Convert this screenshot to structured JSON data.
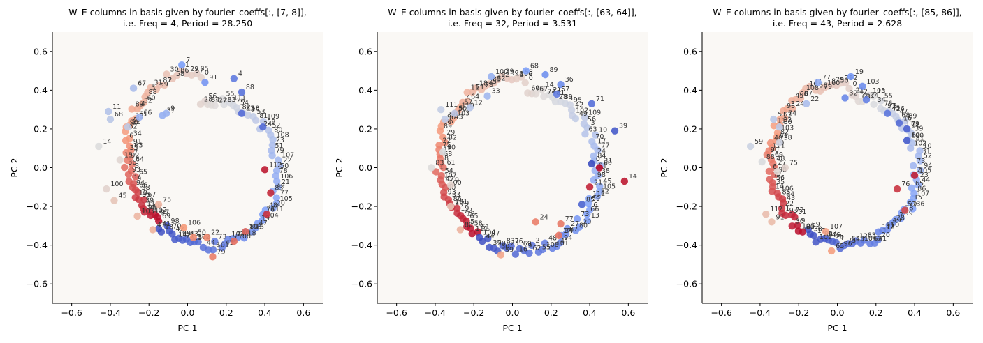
{
  "chart_data": [
    {
      "type": "scatter",
      "title_line1": "W_E columns in basis given by fourier_coeffs[:, [7, 8]],",
      "title_line2": "i.e. Freq = 4, Period = 28.250",
      "xlabel": "PC 1",
      "ylabel": "PC 2",
      "xlim": [
        -0.7,
        0.7
      ],
      "ylim": [
        -0.7,
        0.7
      ],
      "xticks": [
        "−0.6",
        "−0.4",
        "−0.2",
        "0.0",
        "0.2",
        "0.4",
        "0.6"
      ],
      "yticks": [
        "−0.6",
        "−0.4",
        "−0.2",
        "0.0",
        "0.2",
        "0.4",
        "0.6"
      ],
      "colormap": "coolwarm",
      "freq": 4,
      "period": 28.25,
      "radius_outer": 0.5,
      "radius_inner": 0.3,
      "points": 113,
      "labelled_points": [
        {
          "label": "7",
          "x": -0.03,
          "y": 0.53
        },
        {
          "label": "4",
          "x": 0.24,
          "y": 0.46
        },
        {
          "label": "91",
          "x": 0.09,
          "y": 0.44
        },
        {
          "label": "67",
          "x": -0.28,
          "y": 0.41
        },
        {
          "label": "88",
          "x": 0.28,
          "y": 0.39
        },
        {
          "label": "31",
          "x": 0.28,
          "y": 0.28
        },
        {
          "label": "59",
          "x": 0.39,
          "y": 0.21
        },
        {
          "label": "112",
          "x": 0.4,
          "y": -0.01
        },
        {
          "label": "83",
          "x": 0.43,
          "y": -0.13
        },
        {
          "label": "111",
          "x": 0.41,
          "y": -0.24
        },
        {
          "label": "80",
          "x": 0.3,
          "y": -0.33
        },
        {
          "label": "79",
          "x": 0.13,
          "y": -0.46
        },
        {
          "label": "108",
          "x": 0.24,
          "y": -0.38
        },
        {
          "label": "22",
          "x": 0.1,
          "y": -0.36
        },
        {
          "label": "50",
          "x": 0.03,
          "y": -0.36
        },
        {
          "label": "106",
          "x": -0.02,
          "y": -0.31
        },
        {
          "label": "47",
          "x": -0.18,
          "y": -0.32
        },
        {
          "label": "103",
          "x": -0.26,
          "y": -0.25
        },
        {
          "label": "75",
          "x": -0.15,
          "y": -0.19
        },
        {
          "label": "45",
          "x": -0.38,
          "y": -0.17
        },
        {
          "label": "100",
          "x": -0.42,
          "y": -0.11
        },
        {
          "label": "14",
          "x": -0.46,
          "y": 0.11
        },
        {
          "label": "68",
          "x": -0.4,
          "y": 0.25
        },
        {
          "label": "11",
          "x": -0.41,
          "y": 0.29
        },
        {
          "label": "12",
          "x": -0.31,
          "y": 0.21
        },
        {
          "label": "66",
          "x": -0.25,
          "y": 0.26
        },
        {
          "label": "37",
          "x": -0.13,
          "y": 0.27
        },
        {
          "label": "9",
          "x": -0.11,
          "y": 0.28
        },
        {
          "label": "15",
          "x": -0.35,
          "y": 0.04
        }
      ]
    },
    {
      "type": "scatter",
      "title_line1": "W_E columns in basis given by fourier_coeffs[:, [63, 64]],",
      "title_line2": "i.e. Freq = 32, Period = 3.531",
      "xlabel": "PC 1",
      "ylabel": "PC 2",
      "xlim": [
        -0.7,
        0.7
      ],
      "ylim": [
        -0.7,
        0.7
      ],
      "xticks": [
        "−0.6",
        "−0.4",
        "−0.2",
        "0.0",
        "0.2",
        "0.4",
        "0.6"
      ],
      "yticks": [
        "−0.6",
        "−0.4",
        "−0.2",
        "0.0",
        "0.2",
        "0.4",
        "0.6"
      ],
      "colormap": "coolwarm",
      "freq": 32,
      "period": 3.531,
      "radius_outer": 0.47,
      "radius_inner": 0.39,
      "points": 113,
      "labelled_points": [
        {
          "label": "68",
          "x": 0.07,
          "y": 0.5
        },
        {
          "label": "89",
          "x": 0.17,
          "y": 0.48
        },
        {
          "label": "100",
          "x": -0.11,
          "y": 0.47
        },
        {
          "label": "36",
          "x": 0.25,
          "y": 0.43
        },
        {
          "label": "57",
          "x": 0.23,
          "y": 0.38
        },
        {
          "label": "71",
          "x": 0.41,
          "y": 0.33
        },
        {
          "label": "39",
          "x": 0.53,
          "y": 0.19
        },
        {
          "label": "0",
          "x": 0.41,
          "y": 0.02
        },
        {
          "label": "60",
          "x": 0.45,
          "y": 0.0
        },
        {
          "label": "14",
          "x": 0.58,
          "y": -0.07
        },
        {
          "label": "85",
          "x": 0.36,
          "y": -0.19
        },
        {
          "label": "21",
          "x": 0.4,
          "y": -0.1
        },
        {
          "label": "24",
          "x": 0.12,
          "y": -0.28
        },
        {
          "label": "77",
          "x": 0.25,
          "y": -0.29
        },
        {
          "label": "17",
          "x": 0.24,
          "y": -0.35
        },
        {
          "label": "59",
          "x": -0.06,
          "y": -0.45
        },
        {
          "label": "80",
          "x": -0.27,
          "y": -0.32
        },
        {
          "label": "101",
          "x": -0.32,
          "y": -0.2
        },
        {
          "label": "83",
          "x": -0.42,
          "y": 0.0
        },
        {
          "label": "90",
          "x": -0.36,
          "y": 0.08
        },
        {
          "label": "58",
          "x": -0.35,
          "y": 0.25
        },
        {
          "label": "111",
          "x": -0.37,
          "y": 0.3
        },
        {
          "label": "5",
          "x": -0.3,
          "y": 0.28
        },
        {
          "label": "12",
          "x": -0.22,
          "y": 0.31
        },
        {
          "label": "33",
          "x": -0.13,
          "y": 0.37
        },
        {
          "label": "9",
          "x": -0.32,
          "y": -0.09
        }
      ]
    },
    {
      "type": "scatter",
      "title_line1": "W_E columns in basis given by fourier_coeffs[:, [85, 86]],",
      "title_line2": "i.e. Freq = 43, Period = 2.628",
      "xlabel": "PC 1",
      "ylabel": "PC 2",
      "xlim": [
        -0.7,
        0.7
      ],
      "ylim": [
        -0.7,
        0.7
      ],
      "xticks": [
        "−0.6",
        "−0.4",
        "−0.2",
        "0.0",
        "0.2",
        "0.4",
        "0.6"
      ],
      "yticks": [
        "−0.6",
        "−0.4",
        "−0.2",
        "0.0",
        "0.2",
        "0.4",
        "0.6"
      ],
      "colormap": "coolwarm",
      "freq": 43,
      "period": 2.628,
      "radius_outer": 0.44,
      "radius_inner": 0.36,
      "points": 113,
      "labelled_points": [
        {
          "label": "19",
          "x": 0.07,
          "y": 0.47
        },
        {
          "label": "77",
          "x": -0.1,
          "y": 0.44
        },
        {
          "label": "103",
          "x": 0.13,
          "y": 0.42
        },
        {
          "label": "74",
          "x": 0.15,
          "y": 0.35
        },
        {
          "label": "45",
          "x": 0.26,
          "y": 0.28
        },
        {
          "label": "16",
          "x": 0.32,
          "y": 0.23
        },
        {
          "label": "79",
          "x": 0.36,
          "y": 0.2
        },
        {
          "label": "100",
          "x": 0.36,
          "y": 0.14
        },
        {
          "label": "105",
          "x": 0.4,
          "y": -0.04
        },
        {
          "label": "76",
          "x": 0.31,
          "y": -0.11
        },
        {
          "label": "47",
          "x": 0.35,
          "y": -0.22
        },
        {
          "label": "107",
          "x": -0.06,
          "y": -0.33
        },
        {
          "label": "65",
          "x": -0.03,
          "y": -0.43
        },
        {
          "label": "112",
          "x": -0.37,
          "y": -0.24
        },
        {
          "label": "91",
          "x": -0.34,
          "y": -0.28
        },
        {
          "label": "88",
          "x": -0.39,
          "y": 0.03
        },
        {
          "label": "59",
          "x": -0.45,
          "y": 0.11
        },
        {
          "label": "4",
          "x": -0.31,
          "y": -0.02
        },
        {
          "label": "75",
          "x": -0.27,
          "y": 0.0
        },
        {
          "label": "51",
          "x": -0.33,
          "y": 0.25
        },
        {
          "label": "30",
          "x": -0.3,
          "y": 0.21
        },
        {
          "label": "38",
          "x": -0.3,
          "y": 0.13
        },
        {
          "label": "22",
          "x": -0.16,
          "y": 0.33
        },
        {
          "label": "32",
          "x": 0.04,
          "y": 0.36
        }
      ]
    }
  ]
}
